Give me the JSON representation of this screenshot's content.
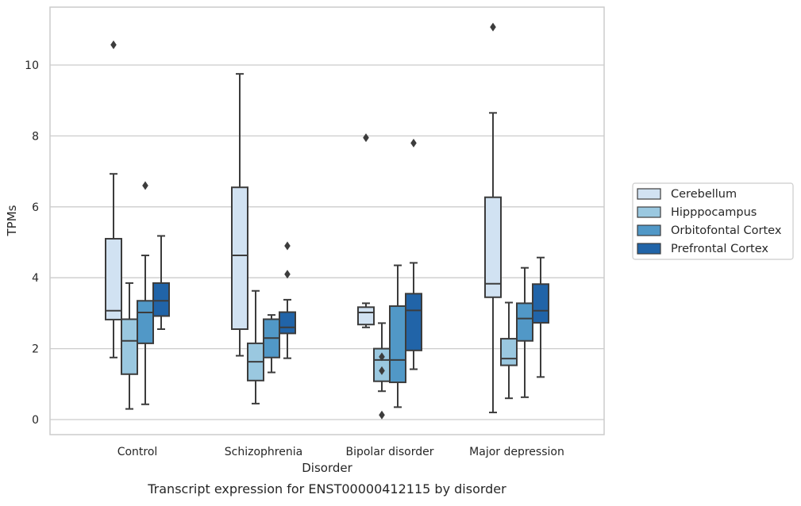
{
  "chart_data": {
    "type": "box",
    "caption": "Transcript expression for ENST00000412115 by disorder",
    "xlabel": "Disorder",
    "ylabel": "TPMs",
    "ylim": [
      -0.4,
      11.6
    ],
    "yticks": [
      0,
      2,
      4,
      6,
      8,
      10
    ],
    "grid": "horizontal",
    "legend_position": "right",
    "categories": [
      "Control",
      "Schizophrenia",
      "Bipolar disorder",
      "Major depression"
    ],
    "series": [
      {
        "name": "Cerebellum",
        "color": "#d1e2f2",
        "boxes": [
          {
            "whisker_low": 1.75,
            "q1": 2.82,
            "median": 3.07,
            "q3": 5.1,
            "whisker_high": 6.93,
            "outliers": [
              10.57
            ]
          },
          {
            "whisker_low": 1.8,
            "q1": 2.55,
            "median": 4.63,
            "q3": 6.55,
            "whisker_high": 9.75,
            "outliers": []
          },
          {
            "whisker_low": 2.6,
            "q1": 2.68,
            "median": 3.02,
            "q3": 3.17,
            "whisker_high": 3.28,
            "outliers": [
              7.95
            ]
          },
          {
            "whisker_low": 0.2,
            "q1": 3.45,
            "median": 3.83,
            "q3": 6.27,
            "whisker_high": 8.65,
            "outliers": [
              11.07
            ]
          }
        ]
      },
      {
        "name": "Hipppocampus",
        "color": "#9ac8e0",
        "boxes": [
          {
            "whisker_low": 0.3,
            "q1": 1.28,
            "median": 2.22,
            "q3": 2.83,
            "whisker_high": 3.85,
            "outliers": []
          },
          {
            "whisker_low": 0.45,
            "q1": 1.1,
            "median": 1.63,
            "q3": 2.15,
            "whisker_high": 3.63,
            "outliers": []
          },
          {
            "whisker_low": 0.8,
            "q1": 1.08,
            "median": 1.68,
            "q3": 2.0,
            "whisker_high": 2.72,
            "outliers": [
              1.77,
              1.38,
              0.13
            ]
          },
          {
            "whisker_low": 0.6,
            "q1": 1.53,
            "median": 1.72,
            "q3": 2.28,
            "whisker_high": 3.3,
            "outliers": []
          }
        ]
      },
      {
        "name": "Orbitofontal Cortex",
        "color": "#5198c7",
        "boxes": [
          {
            "whisker_low": 0.43,
            "q1": 2.15,
            "median": 3.02,
            "q3": 3.35,
            "whisker_high": 4.63,
            "outliers": [
              6.6
            ]
          },
          {
            "whisker_low": 1.33,
            "q1": 1.75,
            "median": 2.3,
            "q3": 2.83,
            "whisker_high": 2.95,
            "outliers": []
          },
          {
            "whisker_low": 0.35,
            "q1": 1.05,
            "median": 1.68,
            "q3": 3.2,
            "whisker_high": 4.35,
            "outliers": []
          },
          {
            "whisker_low": 0.63,
            "q1": 2.22,
            "median": 2.85,
            "q3": 3.28,
            "whisker_high": 4.28,
            "outliers": []
          }
        ]
      },
      {
        "name": "Prefrontal Cortex",
        "color": "#2164a8",
        "boxes": [
          {
            "whisker_low": 2.55,
            "q1": 2.92,
            "median": 3.35,
            "q3": 3.85,
            "whisker_high": 5.18,
            "outliers": []
          },
          {
            "whisker_low": 1.73,
            "q1": 2.43,
            "median": 2.6,
            "q3": 3.03,
            "whisker_high": 3.38,
            "outliers": [
              4.9,
              4.1
            ]
          },
          {
            "whisker_low": 1.42,
            "q1": 1.95,
            "median": 3.08,
            "q3": 3.55,
            "whisker_high": 4.42,
            "outliers": [
              7.8
            ]
          },
          {
            "whisker_low": 1.2,
            "q1": 2.73,
            "median": 3.07,
            "q3": 3.82,
            "whisker_high": 4.57,
            "outliers": []
          }
        ]
      }
    ]
  }
}
